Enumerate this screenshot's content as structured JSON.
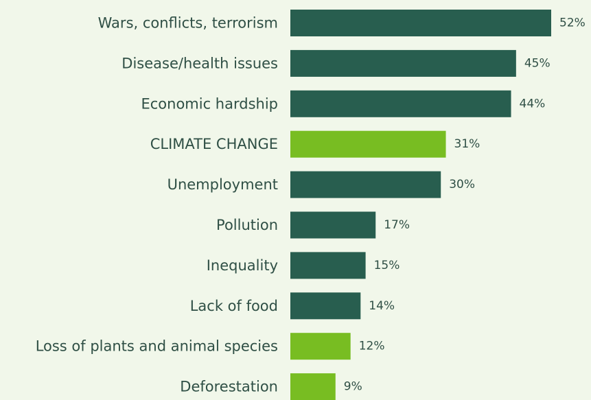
{
  "chart_data": {
    "type": "bar",
    "orientation": "horizontal",
    "title": "",
    "xlabel": "",
    "ylabel": "",
    "xlim": [
      0,
      52
    ],
    "grid": false,
    "legend": "none",
    "categories": [
      "Wars, conflicts, terrorism",
      "Disease/health issues",
      "Economic hardship",
      "CLIMATE CHANGE",
      "Unemployment",
      "Pollution",
      "Inequality",
      "Lack of food",
      "Loss of plants and animal species",
      "Deforestation"
    ],
    "values": [
      52,
      45,
      44,
      31,
      30,
      17,
      15,
      14,
      12,
      9
    ],
    "value_labels": [
      "52%",
      "45%",
      "44%",
      "31%",
      "30%",
      "17%",
      "15%",
      "14%",
      "12%",
      "9%"
    ],
    "highlighted": [
      false,
      false,
      false,
      true,
      false,
      false,
      false,
      false,
      true,
      true
    ],
    "colors": {
      "default_bar": "#285e4f",
      "highlight_bar": "#78bd22",
      "text": "#2f4f45",
      "background": "#f1f7ea"
    }
  }
}
